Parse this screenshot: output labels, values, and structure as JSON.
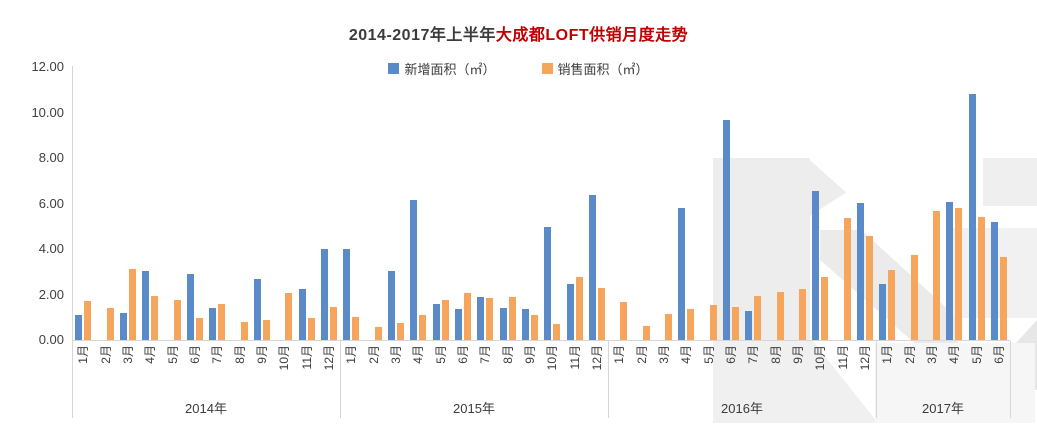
{
  "title": {
    "prefix": "2014-2017年上半年",
    "highlight": "大成都LOFT供销月度走势"
  },
  "colors": {
    "new_area_blue": "#5a8bc8",
    "sold_area_orange": "#f5a55c",
    "title_highlight_red": "#c00000",
    "axis_line": "#d6d6d6",
    "label_text": "#3b3b3b",
    "watermark_gray": "#ededed"
  },
  "chart_data": {
    "type": "bar",
    "title": "2014-2017年上半年大成都LOFT供销月度走势",
    "legend": [
      "新增面积（㎡）",
      "销售面积（㎡）"
    ],
    "legend_position": "top-center",
    "grid": false,
    "ylim": [
      0,
      12
    ],
    "ytick_values": [
      12,
      10,
      8,
      6,
      4,
      2,
      0
    ],
    "ytick_labels": [
      "12.00",
      "10.00",
      "8.00",
      "6.00",
      "4.00",
      "2.00",
      "0.00"
    ],
    "groups": [
      {
        "year": "2014年",
        "months": [
          "1月",
          "2月",
          "3月",
          "4月",
          "5月",
          "6月",
          "7月",
          "8月",
          "9月",
          "10月",
          "11月",
          "12月"
        ]
      },
      {
        "year": "2015年",
        "months": [
          "1月",
          "2月",
          "3月",
          "4月",
          "5月",
          "6月",
          "7月",
          "8月",
          "9月",
          "10月",
          "11月",
          "12月"
        ]
      },
      {
        "year": "2016年",
        "months": [
          "1月",
          "2月",
          "3月",
          "4月",
          "5月",
          "6月",
          "7月",
          "8月",
          "9月",
          "10月",
          "11月",
          "12月"
        ]
      },
      {
        "year": "2017年",
        "months": [
          "1月",
          "2月",
          "3月",
          "4月",
          "5月",
          "6月"
        ]
      }
    ],
    "series": [
      {
        "name": "新增面积（㎡）",
        "color": "#5a8bc8",
        "values": [
          1.1,
          0,
          1.2,
          3.05,
          0,
          2.9,
          1.4,
          0,
          2.7,
          0,
          2.25,
          4.0,
          4.0,
          0,
          3.05,
          6.15,
          1.6,
          1.35,
          1.88,
          1.4,
          1.36,
          4.98,
          2.46,
          6.37,
          0,
          0,
          0,
          5.8,
          0,
          9.65,
          1.27,
          0,
          0,
          6.53,
          0,
          6.03,
          2.45,
          0,
          0,
          6.07,
          10.83,
          5.19
        ]
      },
      {
        "name": "销售面积（㎡）",
        "color": "#f5a55c",
        "values": [
          1.7,
          1.4,
          3.1,
          1.95,
          1.75,
          0.95,
          1.6,
          0.8,
          0.9,
          2.05,
          0.95,
          1.45,
          1.0,
          0.55,
          0.73,
          1.1,
          1.76,
          2.05,
          1.86,
          1.88,
          1.1,
          0.7,
          2.76,
          2.3,
          1.68,
          0.63,
          1.15,
          1.36,
          1.56,
          1.47,
          1.93,
          2.1,
          2.22,
          2.77,
          5.37,
          4.55,
          3.08,
          3.74,
          5.67,
          5.79,
          5.42,
          3.66
        ]
      }
    ]
  }
}
